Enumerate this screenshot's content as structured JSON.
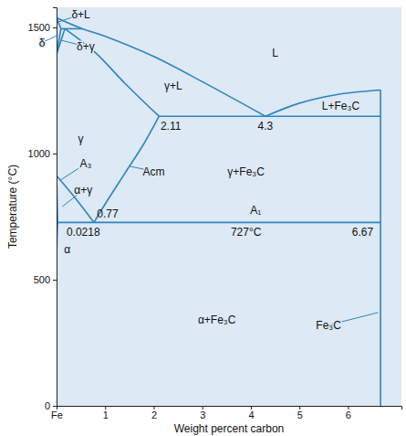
{
  "chart_data": {
    "type": "line",
    "x_label": "Weight percent carbon",
    "y_label": "Temperature (°C)",
    "xlim": [
      0,
      7.1
    ],
    "ylim": [
      0,
      1580
    ],
    "xticks": [
      {
        "value": 0,
        "label": "Fe"
      },
      1,
      2,
      3,
      4,
      5,
      6
    ],
    "yticks": [
      0,
      500,
      1000,
      1500
    ],
    "color": "#2f84bf",
    "series": [
      {
        "x": [
          0,
          0.53,
          1,
          2,
          3,
          4.3
        ],
        "values": [
          1538,
          1495,
          1465,
          1385,
          1285,
          1148
        ]
      },
      {
        "x": [
          0,
          0.09
        ],
        "values": [
          1538,
          1495
        ]
      },
      {
        "x": [
          0.09,
          0.53
        ],
        "values": [
          1495,
          1495
        ]
      },
      {
        "x": [
          0,
          0.09
        ],
        "values": [
          1394,
          1495
        ]
      },
      {
        "x": [
          0,
          0.17
        ],
        "values": [
          1394,
          1495
        ]
      },
      {
        "x": [
          0.17,
          0.8,
          1.4,
          2.11
        ],
        "values": [
          1495,
          1400,
          1280,
          1148
        ]
      },
      {
        "x": [
          2.11,
          6.67
        ],
        "values": [
          1148,
          1148
        ]
      },
      {
        "x": [
          4.3,
          5,
          5.8,
          6.67
        ],
        "values": [
          1148,
          1200,
          1235,
          1252
        ]
      },
      {
        "x": [
          0.77,
          1.0,
          1.4,
          1.8,
          2.11
        ],
        "values": [
          727,
          800,
          920,
          1040,
          1148
        ]
      },
      {
        "x": [
          0,
          0.4,
          0.77
        ],
        "values": [
          912,
          820,
          727
        ]
      },
      {
        "x": [
          0,
          0.0218
        ],
        "values": [
          912,
          727
        ]
      },
      {
        "x": [
          0.0218,
          0.012,
          0.005,
          0
        ],
        "values": [
          727,
          680,
          630,
          600
        ]
      },
      {
        "x": [
          0.0218,
          6.67
        ],
        "values": [
          727,
          727
        ]
      },
      {
        "x": [
          6.67,
          6.67
        ],
        "values": [
          0,
          1252
        ]
      }
    ],
    "annotations": [
      {
        "text": "δ+L",
        "x": 0.5,
        "y": 1552,
        "xy": [
          0.04,
          1522
        ]
      },
      {
        "text": "δ",
        "x": -0.3,
        "y": 1440,
        "xy": [
          0.03,
          1470
        ]
      },
      {
        "text": "δ+γ",
        "x": 0.6,
        "y": 1425,
        "xy": [
          0.08,
          1450
        ]
      },
      {
        "text": "L",
        "x": 4.5,
        "y": 1400
      },
      {
        "text": "γ+L",
        "x": 2.4,
        "y": 1270
      },
      {
        "text": "L+Fe₃C",
        "x": 5.85,
        "y": 1188
      },
      {
        "text": "2.11",
        "x": 2.35,
        "y": 1110
      },
      {
        "text": "4.3",
        "x": 4.3,
        "y": 1110
      },
      {
        "text": "γ",
        "x": 0.5,
        "y": 1060
      },
      {
        "text": "A₃",
        "x": 0.6,
        "y": 960,
        "xy": [
          0.08,
          895
        ]
      },
      {
        "text": "Acm",
        "x": 2.0,
        "y": 930,
        "xy": [
          1.5,
          950
        ]
      },
      {
        "text": "γ+Fe₃C",
        "x": 3.9,
        "y": 930
      },
      {
        "text": "α+γ",
        "x": 0.55,
        "y": 855,
        "xy": [
          0.12,
          790
        ]
      },
      {
        "text": "0.77",
        "x": 1.05,
        "y": 760
      },
      {
        "text": "A₁",
        "x": 4.1,
        "y": 775
      },
      {
        "text": "727°C",
        "x": 3.9,
        "y": 690
      },
      {
        "text": "6.67",
        "x": 6.3,
        "y": 690
      },
      {
        "text": "0.0218",
        "x": 0.55,
        "y": 690
      },
      {
        "text": "α",
        "x": 0.22,
        "y": 620
      },
      {
        "text": "α+Fe₃C",
        "x": 3.3,
        "y": 340
      },
      {
        "text": "Fe₃C",
        "x": 5.6,
        "y": 320,
        "xy": [
          6.62,
          370
        ]
      }
    ]
  }
}
